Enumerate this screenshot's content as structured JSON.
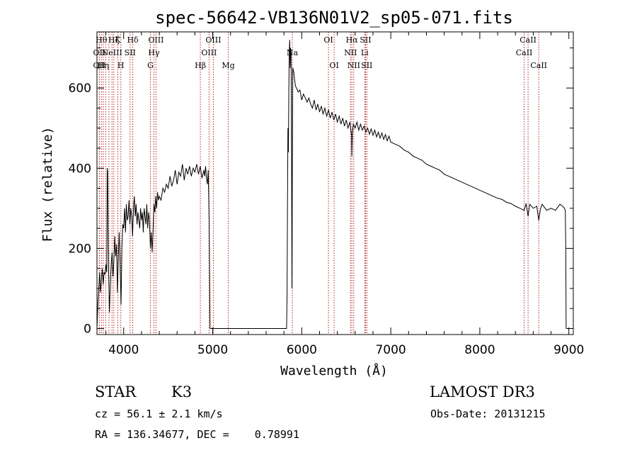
{
  "chart_data": {
    "type": "line",
    "title": "spec-56642-VB136N01V2_sp05-071.fits",
    "xlabel": "Wavelength (Å)",
    "ylabel": "Flux (relative)",
    "xlim": [
      3700,
      9050
    ],
    "ylim": [
      -15,
      740
    ],
    "x_ticks": [
      4000,
      5000,
      6000,
      7000,
      8000,
      9000
    ],
    "y_ticks": [
      0,
      200,
      400,
      600
    ],
    "x_tick_labels": [
      "4000",
      "5000",
      "6000",
      "7000",
      "8000",
      "9000"
    ],
    "y_tick_labels": [
      "0",
      "200",
      "400",
      "600"
    ],
    "grid": false,
    "series": [
      {
        "name": "flux",
        "points": [
          [
            3700,
            0
          ],
          [
            3710,
            60
          ],
          [
            3720,
            100
          ],
          [
            3730,
            140
          ],
          [
            3740,
            90
          ],
          [
            3750,
            120
          ],
          [
            3760,
            150
          ],
          [
            3770,
            110
          ],
          [
            3780,
            140
          ],
          [
            3790,
            135
          ],
          [
            3800,
            160
          ],
          [
            3810,
            140
          ],
          [
            3815,
            400
          ],
          [
            3820,
            390
          ],
          [
            3825,
            250
          ],
          [
            3830,
            150
          ],
          [
            3840,
            40
          ],
          [
            3850,
            110
          ],
          [
            3860,
            160
          ],
          [
            3870,
            190
          ],
          [
            3880,
            130
          ],
          [
            3890,
            170
          ],
          [
            3900,
            230
          ],
          [
            3910,
            180
          ],
          [
            3920,
            210
          ],
          [
            3930,
            90
          ],
          [
            3940,
            180
          ],
          [
            3950,
            240
          ],
          [
            3960,
            160
          ],
          [
            3970,
            60
          ],
          [
            3980,
            200
          ],
          [
            3990,
            260
          ],
          [
            4000,
            250
          ],
          [
            4010,
            300
          ],
          [
            4020,
            240
          ],
          [
            4030,
            310
          ],
          [
            4040,
            270
          ],
          [
            4050,
            280
          ],
          [
            4060,
            320
          ],
          [
            4070,
            260
          ],
          [
            4080,
            300
          ],
          [
            4090,
            280
          ],
          [
            4100,
            230
          ],
          [
            4110,
            300
          ],
          [
            4120,
            330
          ],
          [
            4130,
            280
          ],
          [
            4140,
            310
          ],
          [
            4150,
            260
          ],
          [
            4160,
            290
          ],
          [
            4170,
            270
          ],
          [
            4180,
            250
          ],
          [
            4190,
            300
          ],
          [
            4200,
            270
          ],
          [
            4210,
            290
          ],
          [
            4220,
            240
          ],
          [
            4230,
            300
          ],
          [
            4240,
            280
          ],
          [
            4250,
            260
          ],
          [
            4260,
            310
          ],
          [
            4270,
            250
          ],
          [
            4280,
            290
          ],
          [
            4290,
            270
          ],
          [
            4300,
            200
          ],
          [
            4310,
            240
          ],
          [
            4320,
            190
          ],
          [
            4330,
            250
          ],
          [
            4340,
            310
          ],
          [
            4350,
            290
          ],
          [
            4360,
            330
          ],
          [
            4370,
            300
          ],
          [
            4380,
            340
          ],
          [
            4390,
            320
          ],
          [
            4400,
            330
          ],
          [
            4420,
            320
          ],
          [
            4440,
            350
          ],
          [
            4460,
            340
          ],
          [
            4480,
            360
          ],
          [
            4500,
            350
          ],
          [
            4520,
            380
          ],
          [
            4540,
            355
          ],
          [
            4560,
            370
          ],
          [
            4580,
            395
          ],
          [
            4600,
            360
          ],
          [
            4620,
            390
          ],
          [
            4640,
            380
          ],
          [
            4660,
            410
          ],
          [
            4680,
            370
          ],
          [
            4700,
            400
          ],
          [
            4720,
            385
          ],
          [
            4740,
            405
          ],
          [
            4760,
            380
          ],
          [
            4780,
            400
          ],
          [
            4800,
            390
          ],
          [
            4820,
            410
          ],
          [
            4840,
            385
          ],
          [
            4860,
            405
          ],
          [
            4880,
            375
          ],
          [
            4900,
            395
          ],
          [
            4910,
            380
          ],
          [
            4920,
            405
          ],
          [
            4930,
            375
          ],
          [
            4940,
            360
          ],
          [
            4950,
            395
          ],
          [
            4960,
            270
          ],
          [
            4970,
            0
          ],
          [
            5000,
            0
          ],
          [
            5400,
            0
          ],
          [
            5800,
            0
          ],
          [
            5830,
            0
          ],
          [
            5835,
            90
          ],
          [
            5840,
            310
          ],
          [
            5845,
            500
          ],
          [
            5850,
            440
          ],
          [
            5855,
            600
          ],
          [
            5860,
            690
          ],
          [
            5865,
            720
          ],
          [
            5870,
            650
          ],
          [
            5875,
            700
          ],
          [
            5880,
            690
          ],
          [
            5885,
            460
          ],
          [
            5890,
            100
          ],
          [
            5895,
            420
          ],
          [
            5900,
            650
          ],
          [
            5910,
            640
          ],
          [
            5920,
            620
          ],
          [
            5930,
            605
          ],
          [
            5940,
            600
          ],
          [
            5960,
            590
          ],
          [
            5980,
            595
          ],
          [
            6000,
            570
          ],
          [
            6020,
            585
          ],
          [
            6040,
            575
          ],
          [
            6060,
            565
          ],
          [
            6080,
            575
          ],
          [
            6100,
            560
          ],
          [
            6120,
            550
          ],
          [
            6140,
            570
          ],
          [
            6160,
            545
          ],
          [
            6180,
            560
          ],
          [
            6200,
            540
          ],
          [
            6220,
            555
          ],
          [
            6240,
            535
          ],
          [
            6260,
            550
          ],
          [
            6280,
            530
          ],
          [
            6300,
            545
          ],
          [
            6320,
            525
          ],
          [
            6340,
            540
          ],
          [
            6360,
            520
          ],
          [
            6380,
            535
          ],
          [
            6400,
            515
          ],
          [
            6420,
            530
          ],
          [
            6440,
            510
          ],
          [
            6460,
            525
          ],
          [
            6480,
            505
          ],
          [
            6500,
            520
          ],
          [
            6520,
            500
          ],
          [
            6540,
            515
          ],
          [
            6560,
            480
          ],
          [
            6563,
            430
          ],
          [
            6570,
            490
          ],
          [
            6580,
            510
          ],
          [
            6600,
            500
          ],
          [
            6620,
            515
          ],
          [
            6640,
            495
          ],
          [
            6660,
            510
          ],
          [
            6680,
            495
          ],
          [
            6700,
            505
          ],
          [
            6720,
            490
          ],
          [
            6740,
            500
          ],
          [
            6760,
            485
          ],
          [
            6780,
            498
          ],
          [
            6800,
            482
          ],
          [
            6820,
            495
          ],
          [
            6840,
            478
          ],
          [
            6860,
            490
          ],
          [
            6880,
            475
          ],
          [
            6900,
            488
          ],
          [
            6920,
            472
          ],
          [
            6940,
            484
          ],
          [
            6960,
            468
          ],
          [
            6980,
            480
          ],
          [
            7000,
            465
          ],
          [
            7050,
            460
          ],
          [
            7100,
            455
          ],
          [
            7150,
            445
          ],
          [
            7200,
            440
          ],
          [
            7250,
            430
          ],
          [
            7300,
            425
          ],
          [
            7350,
            420
          ],
          [
            7400,
            410
          ],
          [
            7450,
            405
          ],
          [
            7500,
            400
          ],
          [
            7550,
            395
          ],
          [
            7600,
            385
          ],
          [
            7650,
            380
          ],
          [
            7700,
            375
          ],
          [
            7750,
            370
          ],
          [
            7800,
            365
          ],
          [
            7850,
            360
          ],
          [
            7900,
            355
          ],
          [
            7950,
            350
          ],
          [
            8000,
            345
          ],
          [
            8050,
            340
          ],
          [
            8100,
            335
          ],
          [
            8150,
            330
          ],
          [
            8200,
            325
          ],
          [
            8250,
            322
          ],
          [
            8300,
            315
          ],
          [
            8350,
            312
          ],
          [
            8400,
            305
          ],
          [
            8450,
            300
          ],
          [
            8498,
            295
          ],
          [
            8520,
            312
          ],
          [
            8542,
            280
          ],
          [
            8560,
            310
          ],
          [
            8600,
            300
          ],
          [
            8640,
            305
          ],
          [
            8662,
            270
          ],
          [
            8680,
            298
          ],
          [
            8700,
            310
          ],
          [
            8750,
            295
          ],
          [
            8800,
            300
          ],
          [
            8850,
            295
          ],
          [
            8900,
            310
          ],
          [
            8930,
            305
          ],
          [
            8950,
            300
          ],
          [
            8960,
            295
          ],
          [
            8965,
            210
          ],
          [
            8970,
            0
          ]
        ]
      }
    ],
    "lines": [
      {
        "wl": 3727,
        "label": "OII",
        "row": 2
      },
      {
        "wl": 3727,
        "label": "OII",
        "row": 3
      },
      {
        "wl": 3750,
        "label": "Hθ",
        "row": 1
      },
      {
        "wl": 3771,
        "label": "Hη",
        "row": 3
      },
      {
        "wl": 3798,
        "label": "",
        "row": 0
      },
      {
        "wl": 3835,
        "label": "",
        "row": 0
      },
      {
        "wl": 3869,
        "label": "NeIII",
        "row": 2
      },
      {
        "wl": 3889,
        "label": "Hζ",
        "row": 1
      },
      {
        "wl": 3934,
        "label": "K",
        "row": 1
      },
      {
        "wl": 3968,
        "label": "H",
        "row": 3
      },
      {
        "wl": 4072,
        "label": "SII",
        "row": 2
      },
      {
        "wl": 4102,
        "label": "Hδ",
        "row": 1
      },
      {
        "wl": 4300,
        "label": "G",
        "row": 3
      },
      {
        "wl": 4340,
        "label": "Hγ",
        "row": 2
      },
      {
        "wl": 4363,
        "label": "OIII",
        "row": 1
      },
      {
        "wl": 4861,
        "label": "Hβ",
        "row": 3
      },
      {
        "wl": 4959,
        "label": "OIII",
        "row": 2
      },
      {
        "wl": 5007,
        "label": "OIII",
        "row": 1
      },
      {
        "wl": 5175,
        "label": "Mg",
        "row": 3
      },
      {
        "wl": 5894,
        "label": "Na",
        "row": 2
      },
      {
        "wl": 6300,
        "label": "OI",
        "row": 1
      },
      {
        "wl": 6364,
        "label": "OI",
        "row": 3
      },
      {
        "wl": 6548,
        "label": "NII",
        "row": 2
      },
      {
        "wl": 6563,
        "label": "Hα",
        "row": 1
      },
      {
        "wl": 6584,
        "label": "NII",
        "row": 3
      },
      {
        "wl": 6707,
        "label": "Li",
        "row": 2
      },
      {
        "wl": 6717,
        "label": "SII",
        "row": 1
      },
      {
        "wl": 6731,
        "label": "SII",
        "row": 3
      },
      {
        "wl": 8498,
        "label": "CaII",
        "row": 2
      },
      {
        "wl": 8542,
        "label": "CaII",
        "row": 1
      },
      {
        "wl": 8662,
        "label": "CaII",
        "row": 3
      }
    ]
  },
  "info": {
    "object_class": "STAR",
    "subclass": "K3",
    "survey": "LAMOST DR3",
    "redshift_text": "cz = 56.1 ± 2.1 km/s",
    "obs_date_text": "Obs-Date: 20131215",
    "coords_text": "RA = 136.34677, DEC =    0.78991"
  },
  "colors": {
    "line_marker": "#b22222",
    "spectrum": "#000000",
    "axes": "#000000"
  }
}
